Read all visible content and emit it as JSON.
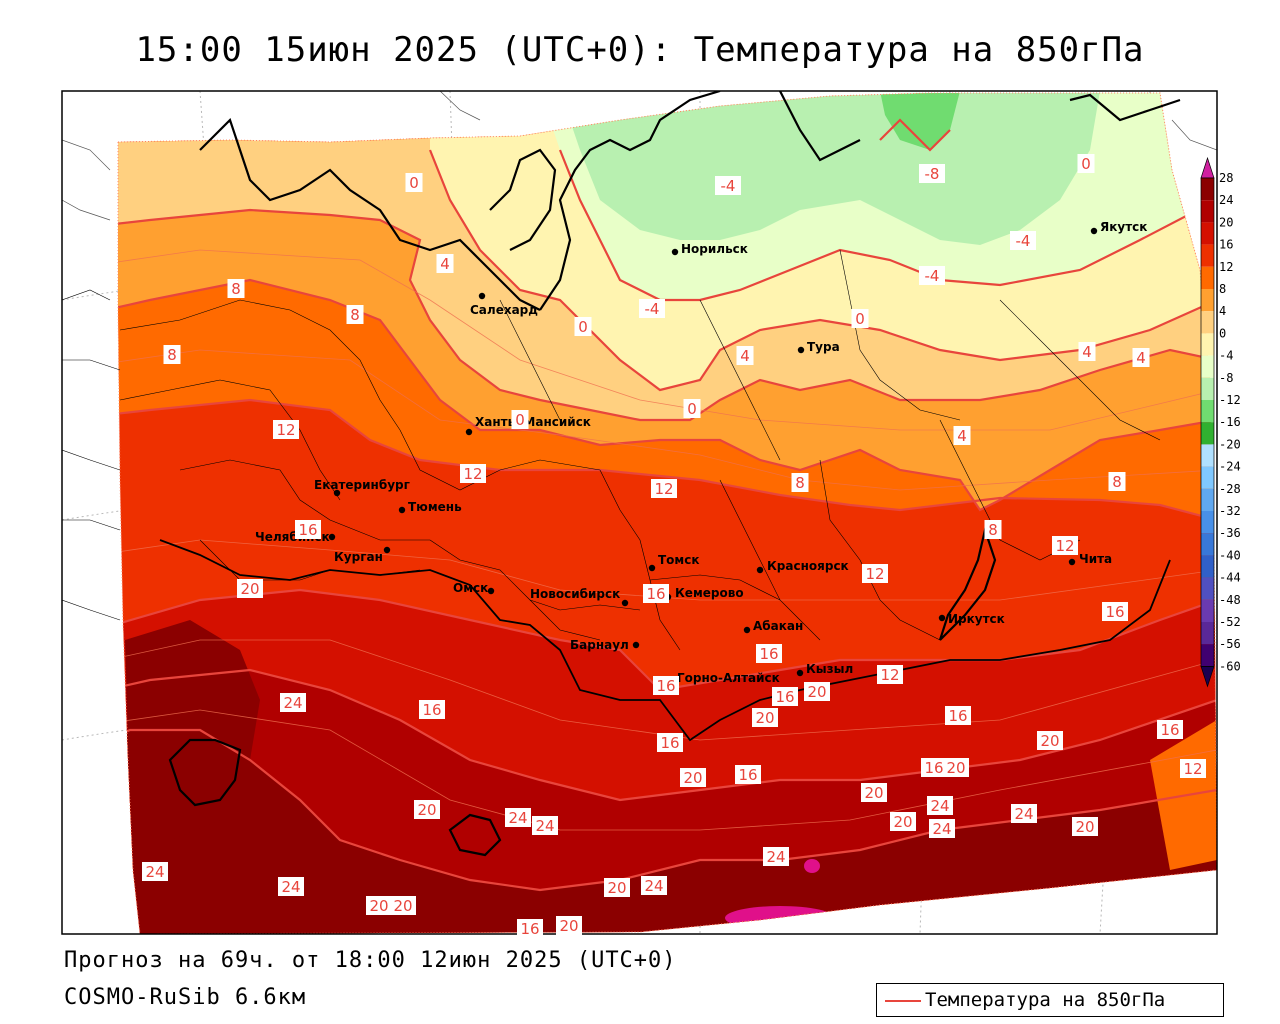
{
  "header": {
    "title": "15:00 15июн 2025 (UTC+0): Температура на 850гПа"
  },
  "footer": {
    "forecast": "Прогноз на 69ч. от 18:00 12июн 2025 (UTC+0)",
    "model": "COSMO-RuSib 6.6км"
  },
  "legend": {
    "label": "Температура на 850гПа",
    "line_color": "#e8453c"
  },
  "colorbar": {
    "ticks": [
      "28",
      "24",
      "20",
      "16",
      "12",
      "8",
      "4",
      "0",
      "-4",
      "-8",
      "-12",
      "-16",
      "-20",
      "-24",
      "-28",
      "-32",
      "-36",
      "-40",
      "-44",
      "-48",
      "-52",
      "-56",
      "-60"
    ],
    "colors": [
      "#8b0000",
      "#b00000",
      "#d41000",
      "#ee3000",
      "#ff6a00",
      "#ffa030",
      "#ffd080",
      "#fff4b0",
      "#e8ffc8",
      "#b8f0b0",
      "#70dc70",
      "#30b030",
      "#b0e0ff",
      "#80c8ff",
      "#60a8f0",
      "#4890e8",
      "#3878d8",
      "#3060c8",
      "#5050c0",
      "#6a3ab0",
      "#5a2898",
      "#400070"
    ],
    "top_color": "#d020a0"
  },
  "cities": [
    {
      "name": "Норильск"
    },
    {
      "name": "Якутск"
    },
    {
      "name": "Салехард"
    },
    {
      "name": "Тура"
    },
    {
      "name": "Ханты-Мансийск"
    },
    {
      "name": "Екатеринбург"
    },
    {
      "name": "Тюмень"
    },
    {
      "name": "Челябинск"
    },
    {
      "name": "Курган"
    },
    {
      "name": "Омск"
    },
    {
      "name": "Новосибирск"
    },
    {
      "name": "Томск"
    },
    {
      "name": "Кемерово"
    },
    {
      "name": "Красноярск"
    },
    {
      "name": "Абакан"
    },
    {
      "name": "Барнаул"
    },
    {
      "name": "Горно-Алтайск"
    },
    {
      "name": "Кызыл"
    },
    {
      "name": "Иркутск"
    },
    {
      "name": "Чита"
    }
  ],
  "contour_labels": [
    "0",
    "-4",
    "-8",
    "0",
    "-4",
    "-4",
    "4",
    "-4",
    "0",
    "0",
    "4",
    "8",
    "8",
    "8",
    "0",
    "4",
    "0",
    "4",
    "4",
    "12",
    "12",
    "12",
    "8",
    "8",
    "8",
    "12",
    "16",
    "20",
    "16",
    "16",
    "12",
    "12",
    "16",
    "24",
    "16",
    "16",
    "16",
    "20",
    "20",
    "16",
    "16",
    "20",
    "16",
    "20",
    "16",
    "20",
    "16",
    "12",
    "20",
    "24",
    "24",
    "24",
    "24",
    "20",
    "20",
    "20",
    "24",
    "24",
    "24",
    "24",
    "20",
    "20",
    "20",
    "16",
    "20",
    "24"
  ]
}
